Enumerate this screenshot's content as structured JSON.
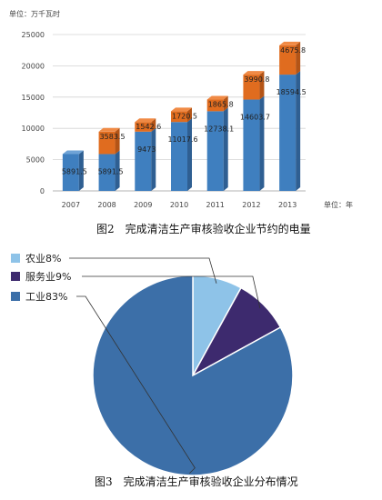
{
  "chart_data": [
    {
      "type": "bar",
      "stacked": true,
      "unit_label": "单位：万千瓦时",
      "x_unit_label": "单位：年",
      "caption": "图2　完成清洁生产审核验收企业节约的电量",
      "categories": [
        "2007",
        "2008",
        "2009",
        "2010",
        "2011",
        "2012",
        "2013"
      ],
      "ylim": [
        0,
        25000
      ],
      "yticks": [
        "0",
        "5000",
        "10000",
        "15000",
        "20000",
        "25000"
      ],
      "series": [
        {
          "values": [
            5891.5,
            5891.5,
            9473,
            11017.6,
            12738.1,
            14603.7,
            18594.5
          ],
          "labels": [
            "5891.5",
            "5891.5",
            "9473",
            "11017.6",
            "12738.1",
            "14603.7",
            "18594.5"
          ]
        },
        {
          "values": [
            0,
            3583.5,
            1542.6,
            1720.5,
            1865.8,
            3990.8,
            4675.8
          ],
          "labels": [
            "",
            "3583.5",
            "1542.6",
            "1720.5",
            "1865.8",
            "3990.8",
            "4675.8"
          ]
        }
      ],
      "colors": {
        "blue": "#3f7fbf",
        "blue_side": "#2f5f92",
        "blue_top": "#6fa3d6",
        "orange": "#e06c1f",
        "orange_side": "#b45416",
        "orange_top": "#f08a45"
      }
    },
    {
      "type": "pie",
      "caption": "图3　完成清洁生产审核验收企业分布情况",
      "slices": [
        {
          "label": "农业8%",
          "value": 8,
          "color": "#8ec3e8"
        },
        {
          "label": "服务业9%",
          "value": 9,
          "color": "#3d2a6e"
        },
        {
          "label": "工业83%",
          "value": 83,
          "color": "#3c6fa8"
        }
      ]
    }
  ]
}
